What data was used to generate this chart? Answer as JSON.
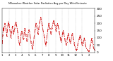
{
  "title": "Milwaukee Weather Solar Radiation Avg per Day W/m2/minute",
  "line_color": "#cc0000",
  "line_style": "-.",
  "line_width": 0.6,
  "marker": ".",
  "marker_size": 0.8,
  "background_color": "#ffffff",
  "grid_color": "#999999",
  "grid_style": ":",
  "ylim": [
    0,
    300
  ],
  "yticks": [
    0,
    50,
    100,
    150,
    200,
    250,
    300
  ],
  "ytick_labels": [
    "0",
    "50",
    "100",
    "150",
    "200",
    "250",
    "300"
  ],
  "ylabel_fontsize": 3.0,
  "xlabel_fontsize": 2.8,
  "values": [
    60,
    120,
    170,
    150,
    180,
    200,
    185,
    165,
    140,
    110,
    155,
    185,
    210,
    195,
    175,
    150,
    125,
    100,
    140,
    165,
    180,
    150,
    125,
    145,
    165,
    190,
    210,
    205,
    185,
    165,
    140,
    110,
    80,
    65,
    50,
    70,
    100,
    130,
    150,
    130,
    110,
    90,
    100,
    140,
    165,
    150,
    125,
    100,
    75,
    90,
    115,
    140,
    155,
    145,
    125,
    100,
    75,
    50,
    40,
    25,
    50,
    75,
    100,
    130,
    155,
    180,
    200,
    185,
    165,
    145,
    125,
    155,
    180,
    205,
    225,
    240,
    225,
    205,
    185,
    165,
    145,
    125,
    105,
    85,
    65,
    45,
    70,
    100,
    130,
    155,
    180,
    200,
    185,
    165,
    145,
    125,
    145,
    165,
    185,
    200,
    215,
    220,
    205,
    185,
    165,
    145,
    165,
    185,
    200,
    185,
    165,
    145,
    125,
    105,
    85,
    70,
    90,
    115,
    135,
    150,
    135,
    115,
    95,
    75,
    60,
    50,
    70,
    95,
    120,
    130,
    115,
    95,
    75,
    60,
    80,
    100,
    120,
    130,
    110,
    90,
    70,
    50,
    40,
    25,
    20,
    15,
    25,
    45,
    65,
    80,
    90,
    105,
    120,
    110,
    90,
    70,
    50,
    45,
    65,
    85,
    100,
    85,
    65,
    45,
    30,
    25,
    20,
    15,
    10,
    8,
    15,
    30,
    50,
    70,
    85,
    100,
    80,
    55,
    35,
    25,
    20,
    15
  ],
  "n_points": 182,
  "x_tick_positions": [
    0,
    13,
    26,
    39,
    52,
    65,
    78,
    91,
    104,
    117,
    130,
    143,
    156,
    169
  ],
  "x_tick_labels": [
    "1",
    "2",
    "3",
    "4",
    "5",
    "6",
    "7",
    "8",
    "9",
    "10",
    "11",
    "12",
    "1",
    "2"
  ],
  "grid_x_positions": [
    13,
    26,
    39,
    52,
    65,
    78,
    91,
    104,
    117,
    130,
    143,
    156
  ]
}
